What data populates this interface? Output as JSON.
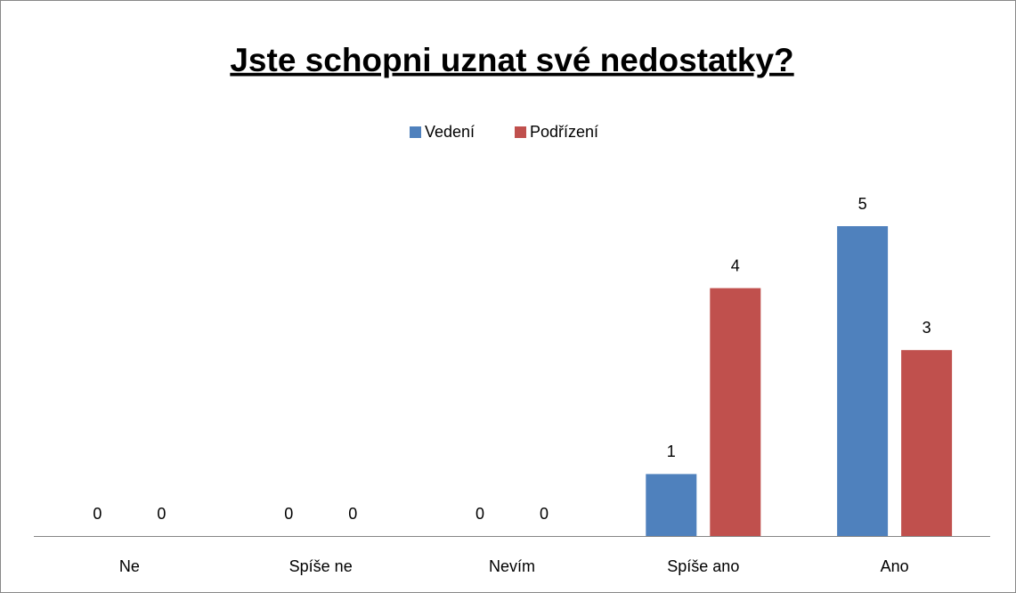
{
  "chart_data": {
    "type": "bar",
    "title": "Jste schopni uznat své nedostatky?",
    "categories": [
      "Ne",
      "Spíše ne",
      "Nevím",
      "Spíše ano",
      "Ano"
    ],
    "series": [
      {
        "name": "Vedení",
        "color": "#4f81bd",
        "values": [
          0,
          0,
          0,
          1,
          5
        ]
      },
      {
        "name": "Podřízení",
        "color": "#c0504d",
        "values": [
          0,
          0,
          0,
          4,
          3
        ]
      }
    ],
    "legend": "top"
  }
}
